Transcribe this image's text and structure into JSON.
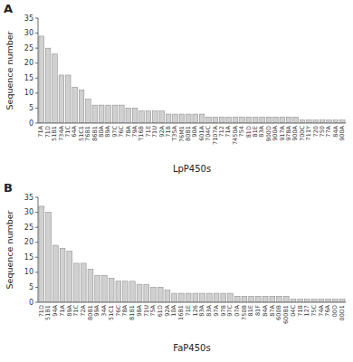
{
  "chart_data": [
    {
      "type": "bar",
      "title": "A",
      "x_label": "LpP450s",
      "y_label": "Sequence number",
      "categories": [
        "71A",
        "71D",
        "51B1",
        "734A",
        "71C",
        "64A",
        "51C1",
        "76B1",
        "86B1",
        "80A",
        "89A",
        "97C",
        "76C",
        "78A",
        "79A",
        "T16B",
        "71E",
        "71U",
        "92A",
        "71B",
        "T35A",
        "76M1",
        "80B1",
        "90A",
        "601A",
        "704C",
        "7107A",
        "712",
        "71A",
        "7450A",
        "754",
        "81D",
        "81E",
        "83A",
        "900D",
        "900A",
        "917A",
        "978A",
        "900A",
        "700C",
        "711Y",
        "720",
        "750",
        "77A",
        "84A",
        "900A"
      ],
      "values": [
        29,
        25,
        23,
        16,
        16,
        12,
        11,
        8,
        6,
        6,
        6,
        6,
        6,
        5,
        5,
        4,
        4,
        4,
        4,
        3,
        3,
        3,
        3,
        3,
        3,
        2,
        2,
        2,
        2,
        2,
        2,
        2,
        2,
        2,
        2,
        2,
        2,
        2,
        2,
        1,
        1,
        1,
        1,
        1,
        1,
        1
      ],
      "color": "#d0d0d0",
      "ylim": [
        0,
        35
      ],
      "yticks": [
        0,
        5,
        10,
        15,
        20,
        25,
        30,
        35
      ],
      "grid": false
    },
    {
      "type": "bar",
      "title": "B",
      "x_label": "FaP450s",
      "y_label": "Sequence number",
      "categories": [
        "71D",
        "51B1",
        "94A",
        "71A",
        "89A",
        "71C",
        "72A",
        "80B1",
        "99A",
        "34A",
        "51C1",
        "76C",
        "78A",
        "81B1",
        "98A",
        "71U",
        "75A",
        "61D",
        "92A",
        "10A",
        "16B1",
        "71E",
        "126",
        "83A",
        "83A",
        "97A",
        "97B",
        "97C",
        "07A",
        "750B",
        "81E",
        "81F",
        "84A",
        "87A",
        "600B",
        "600B1",
        "04C",
        "71B",
        "127",
        "75C",
        "74A",
        "76A",
        "00D",
        "00D1"
      ],
      "values": [
        32,
        30,
        19,
        18,
        17,
        13,
        13,
        11,
        9,
        9,
        8,
        7,
        7,
        7,
        6,
        6,
        5,
        5,
        4,
        3,
        3,
        3,
        3,
        3,
        3,
        3,
        3,
        3,
        2,
        2,
        2,
        2,
        2,
        2,
        2,
        2,
        1,
        1,
        1,
        1,
        1,
        1,
        1,
        1
      ],
      "color": "#d0d0d0",
      "ylim": [
        0,
        35
      ],
      "yticks": [
        0,
        5,
        10,
        15,
        20,
        25,
        30,
        35
      ],
      "grid": false
    }
  ]
}
